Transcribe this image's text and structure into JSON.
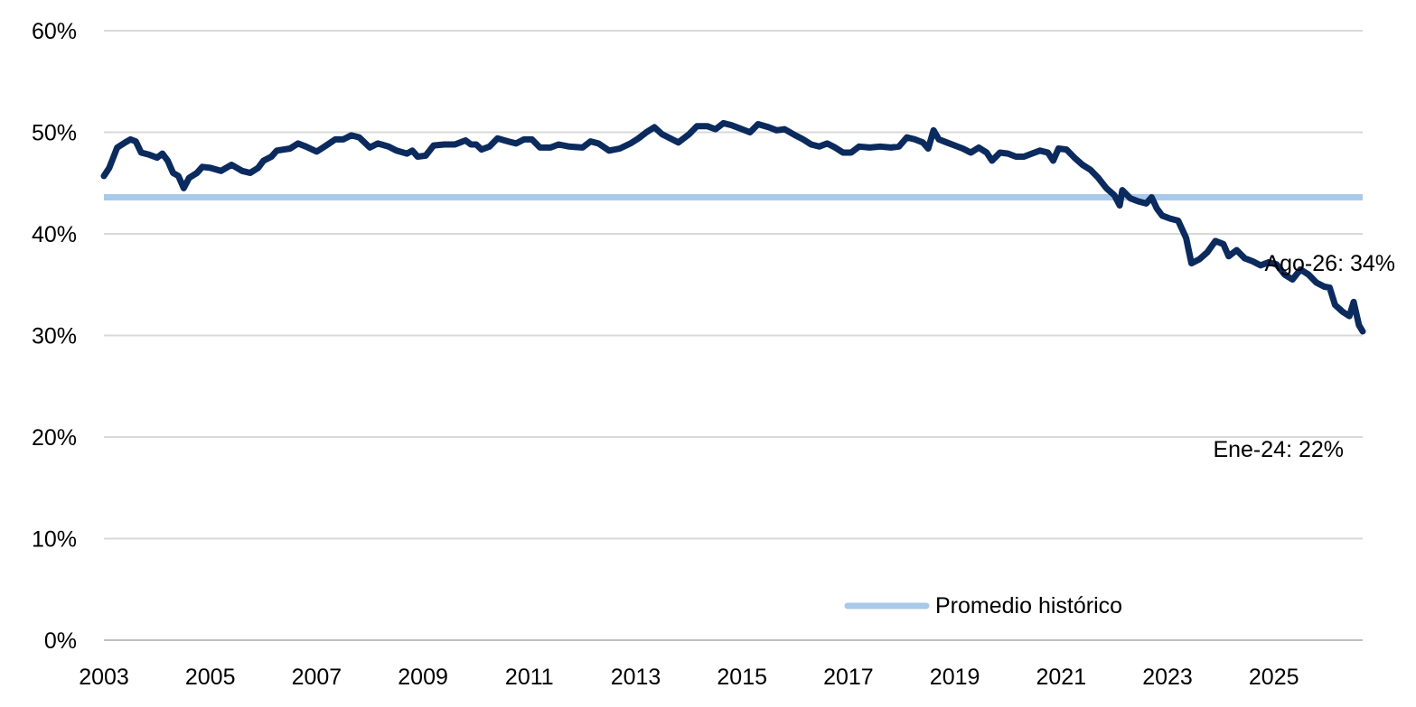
{
  "chart_data": {
    "type": "line",
    "title": "",
    "xlabel": "",
    "ylabel": "",
    "ylim": [
      0,
      60
    ],
    "xlim": [
      2003,
      2026.67
    ],
    "grid": "horizontal",
    "legend_position": "bottom-right",
    "y_ticks": [
      "0%",
      "10%",
      "20%",
      "30%",
      "40%",
      "50%",
      "60%"
    ],
    "x_ticks": [
      "2003",
      "2005",
      "2007",
      "2009",
      "2011",
      "2013",
      "2015",
      "2017",
      "2019",
      "2021",
      "2023",
      "2025"
    ],
    "series": [
      {
        "color": "#0b2a5e",
        "points": [
          [
            2003.0,
            45.7
          ],
          [
            2003.1,
            46.5
          ],
          [
            2003.25,
            48.5
          ],
          [
            2003.4,
            49.0
          ],
          [
            2003.5,
            49.3
          ],
          [
            2003.6,
            49.1
          ],
          [
            2003.7,
            48.0
          ],
          [
            2003.85,
            47.8
          ],
          [
            2004.0,
            47.5
          ],
          [
            2004.1,
            47.9
          ],
          [
            2004.2,
            47.2
          ],
          [
            2004.3,
            46.0
          ],
          [
            2004.4,
            45.7
          ],
          [
            2004.5,
            44.5
          ],
          [
            2004.6,
            45.5
          ],
          [
            2004.75,
            46.0
          ],
          [
            2004.85,
            46.6
          ],
          [
            2005.0,
            46.5
          ],
          [
            2005.2,
            46.2
          ],
          [
            2005.4,
            46.8
          ],
          [
            2005.5,
            46.5
          ],
          [
            2005.6,
            46.2
          ],
          [
            2005.75,
            46.0
          ],
          [
            2005.9,
            46.5
          ],
          [
            2006.0,
            47.2
          ],
          [
            2006.15,
            47.6
          ],
          [
            2006.25,
            48.2
          ],
          [
            2006.5,
            48.4
          ],
          [
            2006.65,
            48.9
          ],
          [
            2006.8,
            48.6
          ],
          [
            2007.0,
            48.1
          ],
          [
            2007.15,
            48.6
          ],
          [
            2007.35,
            49.3
          ],
          [
            2007.5,
            49.3
          ],
          [
            2007.65,
            49.7
          ],
          [
            2007.8,
            49.5
          ],
          [
            2008.0,
            48.5
          ],
          [
            2008.15,
            48.9
          ],
          [
            2008.35,
            48.6
          ],
          [
            2008.5,
            48.2
          ],
          [
            2008.7,
            47.9
          ],
          [
            2008.8,
            48.2
          ],
          [
            2008.9,
            47.6
          ],
          [
            2009.05,
            47.7
          ],
          [
            2009.2,
            48.7
          ],
          [
            2009.4,
            48.8
          ],
          [
            2009.6,
            48.8
          ],
          [
            2009.8,
            49.2
          ],
          [
            2009.9,
            48.8
          ],
          [
            2010.0,
            48.8
          ],
          [
            2010.1,
            48.3
          ],
          [
            2010.25,
            48.6
          ],
          [
            2010.4,
            49.4
          ],
          [
            2010.6,
            49.1
          ],
          [
            2010.75,
            48.9
          ],
          [
            2010.9,
            49.3
          ],
          [
            2011.05,
            49.3
          ],
          [
            2011.2,
            48.5
          ],
          [
            2011.4,
            48.5
          ],
          [
            2011.55,
            48.8
          ],
          [
            2011.75,
            48.6
          ],
          [
            2012.0,
            48.5
          ],
          [
            2012.15,
            49.1
          ],
          [
            2012.3,
            48.9
          ],
          [
            2012.5,
            48.2
          ],
          [
            2012.7,
            48.4
          ],
          [
            2012.9,
            48.9
          ],
          [
            2013.05,
            49.4
          ],
          [
            2013.2,
            50.0
          ],
          [
            2013.35,
            50.5
          ],
          [
            2013.5,
            49.8
          ],
          [
            2013.65,
            49.4
          ],
          [
            2013.8,
            49.0
          ],
          [
            2014.0,
            49.8
          ],
          [
            2014.15,
            50.6
          ],
          [
            2014.35,
            50.6
          ],
          [
            2014.5,
            50.3
          ],
          [
            2014.65,
            50.9
          ],
          [
            2014.8,
            50.7
          ],
          [
            2015.0,
            50.3
          ],
          [
            2015.15,
            50.0
          ],
          [
            2015.3,
            50.8
          ],
          [
            2015.5,
            50.5
          ],
          [
            2015.65,
            50.2
          ],
          [
            2015.8,
            50.3
          ],
          [
            2016.0,
            49.7
          ],
          [
            2016.15,
            49.3
          ],
          [
            2016.3,
            48.8
          ],
          [
            2016.45,
            48.6
          ],
          [
            2016.6,
            48.9
          ],
          [
            2016.75,
            48.5
          ],
          [
            2016.9,
            48.0
          ],
          [
            2017.05,
            48.0
          ],
          [
            2017.2,
            48.6
          ],
          [
            2017.4,
            48.5
          ],
          [
            2017.6,
            48.6
          ],
          [
            2017.8,
            48.5
          ],
          [
            2017.95,
            48.6
          ],
          [
            2018.1,
            49.5
          ],
          [
            2018.25,
            49.3
          ],
          [
            2018.4,
            49.0
          ],
          [
            2018.5,
            48.4
          ],
          [
            2018.6,
            50.2
          ],
          [
            2018.7,
            49.3
          ],
          [
            2018.85,
            49.0
          ],
          [
            2019.0,
            48.7
          ],
          [
            2019.15,
            48.4
          ],
          [
            2019.3,
            48.0
          ],
          [
            2019.45,
            48.5
          ],
          [
            2019.6,
            48.0
          ],
          [
            2019.7,
            47.2
          ],
          [
            2019.85,
            48.0
          ],
          [
            2020.0,
            47.9
          ],
          [
            2020.15,
            47.6
          ],
          [
            2020.3,
            47.6
          ],
          [
            2020.45,
            47.9
          ],
          [
            2020.6,
            48.2
          ],
          [
            2020.75,
            48.0
          ],
          [
            2020.85,
            47.2
          ],
          [
            2020.95,
            48.4
          ],
          [
            2021.1,
            48.3
          ],
          [
            2021.25,
            47.5
          ],
          [
            2021.4,
            46.8
          ],
          [
            2021.55,
            46.3
          ],
          [
            2021.7,
            45.5
          ],
          [
            2021.85,
            44.5
          ],
          [
            2022.0,
            43.8
          ],
          [
            2022.1,
            42.8
          ],
          [
            2022.15,
            44.3
          ],
          [
            2022.3,
            43.5
          ],
          [
            2022.45,
            43.2
          ],
          [
            2022.6,
            43.0
          ],
          [
            2022.7,
            43.6
          ],
          [
            2022.8,
            42.5
          ],
          [
            2022.9,
            41.8
          ],
          [
            2023.05,
            41.5
          ],
          [
            2023.2,
            41.3
          ],
          [
            2023.35,
            39.6
          ],
          [
            2023.45,
            37.1
          ],
          [
            2023.6,
            37.5
          ],
          [
            2023.75,
            38.2
          ],
          [
            2023.9,
            39.3
          ],
          [
            2024.05,
            39.0
          ],
          [
            2024.15,
            37.8
          ],
          [
            2024.3,
            38.4
          ],
          [
            2024.45,
            37.6
          ],
          [
            2024.6,
            37.3
          ],
          [
            2024.75,
            36.9
          ],
          [
            2024.9,
            37.2
          ],
          [
            2025.05,
            37.0
          ],
          [
            2025.2,
            36.0
          ],
          [
            2025.35,
            35.5
          ],
          [
            2025.5,
            36.5
          ],
          [
            2025.65,
            36.0
          ],
          [
            2025.8,
            35.2
          ],
          [
            2025.95,
            34.8
          ],
          [
            2026.05,
            34.7
          ],
          [
            2026.15,
            33.0
          ],
          [
            2026.3,
            32.3
          ],
          [
            2026.42,
            31.9
          ],
          [
            2026.5,
            33.3
          ],
          [
            2026.6,
            31.0
          ],
          [
            2026.67,
            30.4
          ]
        ]
      }
    ],
    "reference_line": {
      "name": "Promedio histórico",
      "value": 43.6,
      "color": "#a9c9ea"
    },
    "annotations": [
      {
        "text": "Ago-26: 34%",
        "x": 2026.67,
        "y": 33.8
      },
      {
        "text": "Ene-24: 22%",
        "x": 2024.0,
        "y": 21.9
      }
    ]
  }
}
